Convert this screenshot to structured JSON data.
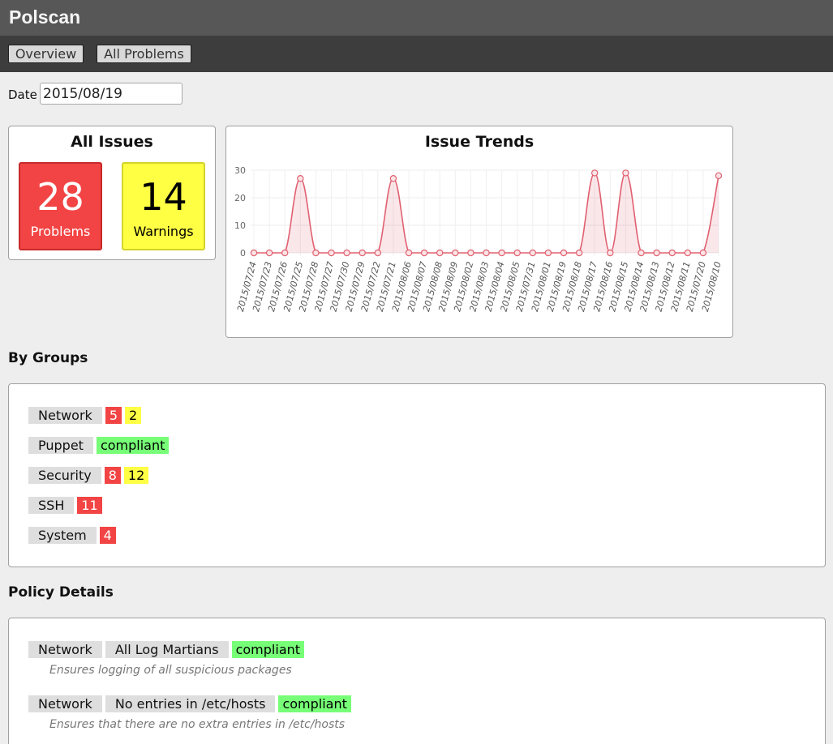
{
  "app": {
    "title": "Polscan"
  },
  "nav": {
    "tabs": [
      {
        "label": "Overview"
      },
      {
        "label": "All Problems"
      }
    ]
  },
  "date": {
    "label": "Date",
    "value": "2015/08/19"
  },
  "all_issues": {
    "title": "All Issues",
    "problems": {
      "count": "28",
      "label": "Problems",
      "color": "#f24444"
    },
    "warnings": {
      "count": "14",
      "label": "Warnings",
      "color": "#ffff44"
    }
  },
  "trends": {
    "title": "Issue Trends",
    "chart_data": {
      "type": "area",
      "title": "Issue Trends",
      "xlabel": "",
      "ylabel": "",
      "ylim": [
        0,
        30
      ],
      "yticks": [
        0,
        10,
        20,
        30
      ],
      "grid": true,
      "categories": [
        "2015/07/24",
        "2015/07/23",
        "2015/07/26",
        "2015/07/25",
        "2015/07/28",
        "2015/07/27",
        "2015/07/30",
        "2015/07/29",
        "2015/07/22",
        "2015/07/21",
        "2015/08/06",
        "2015/08/07",
        "2015/08/08",
        "2015/08/09",
        "2015/08/02",
        "2015/08/03",
        "2015/08/04",
        "2015/08/05",
        "2015/07/31",
        "2015/08/01",
        "2015/08/19",
        "2015/08/18",
        "2015/08/17",
        "2015/08/16",
        "2015/08/15",
        "2015/08/14",
        "2015/08/13",
        "2015/08/12",
        "2015/08/11",
        "2015/07/20",
        "2015/08/10"
      ],
      "series": [
        {
          "values": [
            0,
            0,
            0,
            27,
            0,
            0,
            0,
            0,
            0,
            27,
            0,
            0,
            0,
            0,
            0,
            0,
            0,
            0,
            0,
            0,
            0,
            0,
            29,
            0,
            29,
            0,
            0,
            0,
            0,
            0,
            28
          ],
          "color": "#e06070"
        }
      ]
    }
  },
  "groups": {
    "heading": "By Groups",
    "items": [
      {
        "name": "Network",
        "badges": [
          {
            "text": "5",
            "kind": "red"
          },
          {
            "text": "2",
            "kind": "yellow"
          }
        ]
      },
      {
        "name": "Puppet",
        "badges": [
          {
            "text": "compliant",
            "kind": "green"
          }
        ]
      },
      {
        "name": "Security",
        "badges": [
          {
            "text": "8",
            "kind": "red"
          },
          {
            "text": "12",
            "kind": "yellow"
          }
        ]
      },
      {
        "name": "SSH",
        "badges": [
          {
            "text": "11",
            "kind": "red"
          }
        ]
      },
      {
        "name": "System",
        "badges": [
          {
            "text": "4",
            "kind": "red"
          }
        ]
      }
    ]
  },
  "policies": {
    "heading": "Policy Details",
    "items": [
      {
        "group": "Network",
        "policy": "All Log Martians",
        "status": "compliant",
        "description": "Ensures logging of all suspicious packages"
      },
      {
        "group": "Network",
        "policy": "No entries in /etc/hosts",
        "status": "compliant",
        "description": "Ensures that there are no extra entries in /etc/hosts"
      }
    ]
  },
  "colors": {
    "red": "#f24444",
    "yellow": "#ffff44",
    "green": "#77ff77",
    "header": "#575757",
    "navbar": "#3d3d3d"
  }
}
